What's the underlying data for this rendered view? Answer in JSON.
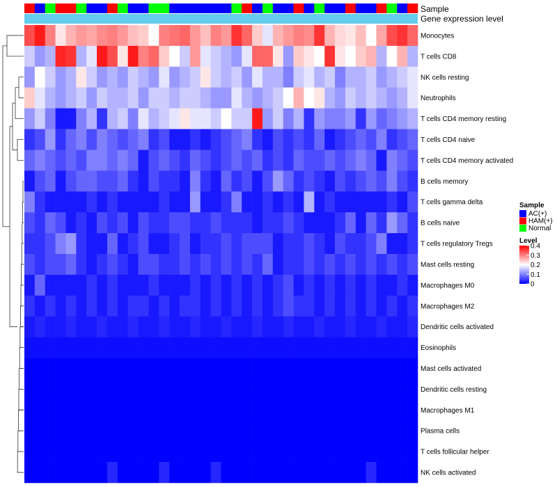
{
  "chart_data": {
    "type": "heatmap",
    "title": "",
    "annotation_rows": [
      "Sample",
      "Gene expression level"
    ],
    "sample_group_legend_title": "Sample",
    "sample_groups": [
      {
        "name": "AC(+)",
        "color": "#0000FF"
      },
      {
        "name": "HAM(+)",
        "color": "#FF0000"
      },
      {
        "name": "Normal",
        "color": "#00FF00"
      }
    ],
    "sample_column_groups": [
      "HAM(+)",
      "AC(+)",
      "Normal",
      "HAM(+)",
      "HAM(+)",
      "Normal",
      "AC(+)",
      "AC(+)",
      "HAM(+)",
      "Normal",
      "AC(+)",
      "AC(+)",
      "Normal",
      "Normal",
      "AC(+)",
      "AC(+)",
      "AC(+)",
      "AC(+)",
      "AC(+)",
      "AC(+)",
      "Normal",
      "HAM(+)",
      "AC(+)",
      "Normal",
      "AC(+)",
      "AC(+)",
      "HAM(+)",
      "AC(+)",
      "Normal",
      "AC(+)",
      "AC(+)",
      "HAM(+)",
      "AC(+)",
      "AC(+)",
      "HAM(+)",
      "Normal",
      "AC(+)",
      "HAM(+)"
    ],
    "gene_expression_annotation_color": "#66CCEE",
    "color_scale": {
      "legend_title": "Level",
      "min": 0,
      "max": 0.4,
      "ticks": [
        "0.4",
        "0.3",
        "0.2",
        "0.1",
        "0"
      ],
      "low_color": "#0000FF",
      "mid_color": "#FFFFFF",
      "high_color": "#FF0000",
      "mid_value": 0.2
    },
    "rows": [
      {
        "label": "Monocytes",
        "values": [
          0.34,
          0.38,
          0.3,
          0.22,
          0.26,
          0.28,
          0.27,
          0.29,
          0.3,
          0.28,
          0.25,
          0.24,
          0.2,
          0.3,
          0.31,
          0.32,
          0.28,
          0.25,
          0.3,
          0.28,
          0.36,
          0.32,
          0.24,
          0.18,
          0.26,
          0.28,
          0.3,
          0.29,
          0.36,
          0.26,
          0.23,
          0.22,
          0.25,
          0.2,
          0.27,
          0.34,
          0.36,
          0.32
        ]
      },
      {
        "label": "T cells CD8",
        "values": [
          0.16,
          0.12,
          0.14,
          0.37,
          0.36,
          0.14,
          0.18,
          0.38,
          0.34,
          0.22,
          0.38,
          0.3,
          0.32,
          0.24,
          0.2,
          0.16,
          0.28,
          0.18,
          0.16,
          0.14,
          0.12,
          0.18,
          0.32,
          0.32,
          0.22,
          0.12,
          0.24,
          0.22,
          0.2,
          0.36,
          0.22,
          0.2,
          0.24,
          0.26,
          0.14,
          0.2,
          0.26,
          0.14
        ]
      },
      {
        "label": "NK cells resting",
        "values": [
          0.12,
          0.2,
          0.16,
          0.12,
          0.14,
          0.22,
          0.16,
          0.12,
          0.14,
          0.12,
          0.16,
          0.14,
          0.12,
          0.18,
          0.12,
          0.14,
          0.16,
          0.22,
          0.16,
          0.14,
          0.16,
          0.12,
          0.18,
          0.14,
          0.14,
          0.1,
          0.16,
          0.18,
          0.14,
          0.16,
          0.1,
          0.14,
          0.14,
          0.16,
          0.12,
          0.14,
          0.16,
          0.18
        ]
      },
      {
        "label": "Neutrophils",
        "values": [
          0.24,
          0.18,
          0.14,
          0.12,
          0.14,
          0.16,
          0.12,
          0.16,
          0.14,
          0.14,
          0.16,
          0.12,
          0.16,
          0.16,
          0.14,
          0.16,
          0.16,
          0.14,
          0.12,
          0.12,
          0.18,
          0.14,
          0.12,
          0.14,
          0.16,
          0.2,
          0.26,
          0.2,
          0.22,
          0.14,
          0.12,
          0.16,
          0.14,
          0.16,
          0.14,
          0.12,
          0.14,
          0.18
        ]
      },
      {
        "label": "T cells CD4 memory resting",
        "values": [
          0.12,
          0.16,
          0.1,
          0.02,
          0.02,
          0.1,
          0.14,
          0.04,
          0.14,
          0.16,
          0.1,
          0.18,
          0.14,
          0.16,
          0.18,
          0.22,
          0.18,
          0.18,
          0.16,
          0.2,
          0.16,
          0.16,
          0.38,
          0.12,
          0.16,
          0.1,
          0.14,
          0.04,
          0.12,
          0.1,
          0.1,
          0.12,
          0.04,
          0.12,
          0.08,
          0.1,
          0.12,
          0.14
        ]
      },
      {
        "label": "T cells CD4 naive",
        "values": [
          0.04,
          0.06,
          0.12,
          0.04,
          0.08,
          0.1,
          0.06,
          0.1,
          0.08,
          0.06,
          0.08,
          0.1,
          0.04,
          0.06,
          0.02,
          0.02,
          0.04,
          0.02,
          0.04,
          0.06,
          0.08,
          0.1,
          0.04,
          0.02,
          0.06,
          0.04,
          0.06,
          0.04,
          0.08,
          0.02,
          0.04,
          0.06,
          0.08,
          0.06,
          0.1,
          0.04,
          0.06,
          0.08
        ]
      },
      {
        "label": "T cells CD4 memory activated",
        "values": [
          0.08,
          0.1,
          0.08,
          0.06,
          0.08,
          0.06,
          0.1,
          0.1,
          0.08,
          0.1,
          0.08,
          0.02,
          0.06,
          0.08,
          0.06,
          0.04,
          0.08,
          0.06,
          0.04,
          0.06,
          0.08,
          0.06,
          0.08,
          0.04,
          0.06,
          0.04,
          0.08,
          0.06,
          0.06,
          0.08,
          0.06,
          0.08,
          0.1,
          0.08,
          0.02,
          0.1,
          0.08,
          0.06
        ]
      },
      {
        "label": "B cells memory",
        "values": [
          0.02,
          0.06,
          0.08,
          0.02,
          0.06,
          0.08,
          0.08,
          0.06,
          0.06,
          0.08,
          0.04,
          0.02,
          0.06,
          0.04,
          0.04,
          0.02,
          0.1,
          0.04,
          0.02,
          0.08,
          0.04,
          0.06,
          0.02,
          0.06,
          0.12,
          0.08,
          0.04,
          0.06,
          0.04,
          0.02,
          0.06,
          0.04,
          0.06,
          0.08,
          0.06,
          0.1,
          0.06,
          0.04
        ]
      },
      {
        "label": "T cells gamma delta",
        "values": [
          0.1,
          0.04,
          0.02,
          0.02,
          0.02,
          0.02,
          0.04,
          0.02,
          0.04,
          0.02,
          0.02,
          0.02,
          0.02,
          0.04,
          0.02,
          0.02,
          0.12,
          0.02,
          0.02,
          0.04,
          0.1,
          0.02,
          0.02,
          0.04,
          0.02,
          0.04,
          0.02,
          0.14,
          0.02,
          0.04,
          0.02,
          0.02,
          0.02,
          0.02,
          0.02,
          0.04,
          0.02,
          0.06
        ]
      },
      {
        "label": "B cells naive",
        "values": [
          0.06,
          0.04,
          0.08,
          0.06,
          0.02,
          0.04,
          0.02,
          0.06,
          0.04,
          0.06,
          0.02,
          0.06,
          0.04,
          0.04,
          0.06,
          0.06,
          0.04,
          0.04,
          0.06,
          0.04,
          0.04,
          0.04,
          0.02,
          0.04,
          0.04,
          0.06,
          0.04,
          0.02,
          0.02,
          0.02,
          0.04,
          0.08,
          0.02,
          0.08,
          0.04,
          0.12,
          0.08,
          0.04
        ]
      },
      {
        "label": "T cells regulatory  Tregs",
        "values": [
          0.04,
          0.04,
          0.06,
          0.1,
          0.12,
          0.04,
          0.02,
          0.02,
          0.08,
          0.02,
          0.04,
          0.06,
          0.02,
          0.02,
          0.04,
          0.06,
          0.02,
          0.04,
          0.04,
          0.06,
          0.04,
          0.06,
          0.06,
          0.06,
          0.02,
          0.04,
          0.04,
          0.06,
          0.04,
          0.02,
          0.06,
          0.04,
          0.04,
          0.06,
          0.1,
          0.02,
          0.02,
          0.04
        ]
      },
      {
        "label": "Mast cells resting",
        "values": [
          0.06,
          0.04,
          0.06,
          0.06,
          0.08,
          0.04,
          0.02,
          0.04,
          0.06,
          0.04,
          0.02,
          0.06,
          0.06,
          0.04,
          0.04,
          0.06,
          0.04,
          0.06,
          0.04,
          0.06,
          0.04,
          0.06,
          0.04,
          0.08,
          0.02,
          0.04,
          0.04,
          0.06,
          0.04,
          0.06,
          0.04,
          0.06,
          0.04,
          0.06,
          0.04,
          0.06,
          0.04,
          0.06
        ]
      },
      {
        "label": "Macrophages M0",
        "values": [
          0.02,
          0.08,
          0.02,
          0.02,
          0.02,
          0.02,
          0.04,
          0.02,
          0.04,
          0.02,
          0.02,
          0.02,
          0.04,
          0.02,
          0.02,
          0.02,
          0.04,
          0.02,
          0.04,
          0.02,
          0.04,
          0.02,
          0.04,
          0.02,
          0.04,
          0.06,
          0.02,
          0.04,
          0.02,
          0.04,
          0.02,
          0.04,
          0.02,
          0.04,
          0.02,
          0.02,
          0.04,
          0.02
        ]
      },
      {
        "label": "Macrophages M2",
        "values": [
          0.04,
          0.02,
          0.04,
          0.02,
          0.04,
          0.02,
          0.04,
          0.02,
          0.04,
          0.02,
          0.04,
          0.04,
          0.02,
          0.04,
          0.02,
          0.04,
          0.04,
          0.02,
          0.04,
          0.02,
          0.04,
          0.02,
          0.04,
          0.02,
          0.04,
          0.06,
          0.04,
          0.04,
          0.02,
          0.04,
          0.02,
          0.04,
          0.02,
          0.04,
          0.02,
          0.04,
          0.02,
          0.04
        ]
      },
      {
        "label": "Dendritic cells activated",
        "values": [
          0.02,
          0.03,
          0.02,
          0.02,
          0.03,
          0.02,
          0.02,
          0.03,
          0.02,
          0.02,
          0.03,
          0.02,
          0.02,
          0.03,
          0.02,
          0.02,
          0.03,
          0.02,
          0.02,
          0.03,
          0.02,
          0.02,
          0.03,
          0.02,
          0.02,
          0.03,
          0.02,
          0.02,
          0.03,
          0.02,
          0.02,
          0.03,
          0.02,
          0.02,
          0.03,
          0.02,
          0.02,
          0.03
        ]
      },
      {
        "label": "Eosinophils",
        "values": [
          0.01,
          0.01,
          0.01,
          0.01,
          0.01,
          0.01,
          0.01,
          0.01,
          0.01,
          0.01,
          0.01,
          0.01,
          0.01,
          0.01,
          0.01,
          0.01,
          0.01,
          0.01,
          0.01,
          0.01,
          0.01,
          0.01,
          0.01,
          0.01,
          0.01,
          0.01,
          0.01,
          0.01,
          0.01,
          0.01,
          0.01,
          0.01,
          0.01,
          0.01,
          0.01,
          0.01,
          0.01,
          0.01
        ]
      },
      {
        "label": "Mast cells activated",
        "values": [
          0.0,
          0.0,
          0.0,
          0.0,
          0.0,
          0.0,
          0.0,
          0.0,
          0.0,
          0.0,
          0.0,
          0.0,
          0.0,
          0.0,
          0.0,
          0.0,
          0.0,
          0.0,
          0.0,
          0.0,
          0.0,
          0.0,
          0.0,
          0.0,
          0.0,
          0.0,
          0.0,
          0.0,
          0.0,
          0.0,
          0.0,
          0.0,
          0.0,
          0.0,
          0.0,
          0.0,
          0.0,
          0.0
        ]
      },
      {
        "label": "Dendritic cells resting",
        "values": [
          0.0,
          0.0,
          0.0,
          0.0,
          0.0,
          0.0,
          0.0,
          0.0,
          0.0,
          0.0,
          0.0,
          0.0,
          0.0,
          0.0,
          0.0,
          0.0,
          0.0,
          0.0,
          0.0,
          0.0,
          0.0,
          0.0,
          0.0,
          0.0,
          0.0,
          0.0,
          0.0,
          0.0,
          0.0,
          0.0,
          0.0,
          0.0,
          0.0,
          0.0,
          0.0,
          0.0,
          0.0,
          0.0
        ]
      },
      {
        "label": "Macrophages M1",
        "values": [
          0.0,
          0.0,
          0.0,
          0.0,
          0.0,
          0.0,
          0.0,
          0.0,
          0.0,
          0.0,
          0.0,
          0.0,
          0.0,
          0.0,
          0.0,
          0.0,
          0.0,
          0.0,
          0.0,
          0.0,
          0.0,
          0.0,
          0.0,
          0.0,
          0.0,
          0.0,
          0.0,
          0.0,
          0.0,
          0.0,
          0.0,
          0.0,
          0.0,
          0.0,
          0.0,
          0.0,
          0.0,
          0.0
        ]
      },
      {
        "label": "Plasma cells",
        "values": [
          0.0,
          0.0,
          0.0,
          0.0,
          0.0,
          0.0,
          0.0,
          0.0,
          0.0,
          0.0,
          0.0,
          0.0,
          0.0,
          0.0,
          0.0,
          0.0,
          0.0,
          0.0,
          0.0,
          0.0,
          0.0,
          0.0,
          0.0,
          0.0,
          0.0,
          0.0,
          0.0,
          0.0,
          0.0,
          0.0,
          0.0,
          0.0,
          0.0,
          0.0,
          0.0,
          0.0,
          0.0,
          0.0
        ]
      },
      {
        "label": "T cells follicular helper",
        "values": [
          0.0,
          0.0,
          0.0,
          0.0,
          0.0,
          0.0,
          0.0,
          0.0,
          0.0,
          0.0,
          0.0,
          0.0,
          0.0,
          0.0,
          0.0,
          0.0,
          0.0,
          0.0,
          0.0,
          0.0,
          0.0,
          0.0,
          0.0,
          0.0,
          0.0,
          0.0,
          0.0,
          0.0,
          0.0,
          0.0,
          0.0,
          0.0,
          0.0,
          0.0,
          0.0,
          0.0,
          0.0,
          0.0
        ]
      },
      {
        "label": "NK cells activated",
        "values": [
          0.0,
          0.0,
          0.0,
          0.0,
          0.0,
          0.0,
          0.0,
          0.0,
          0.03,
          0.0,
          0.0,
          0.0,
          0.0,
          0.03,
          0.0,
          0.0,
          0.0,
          0.0,
          0.03,
          0.0,
          0.0,
          0.0,
          0.0,
          0.0,
          0.0,
          0.0,
          0.0,
          0.0,
          0.0,
          0.0,
          0.0,
          0.0,
          0.0,
          0.03,
          0.0,
          0.0,
          0.0,
          0.0
        ]
      }
    ]
  }
}
